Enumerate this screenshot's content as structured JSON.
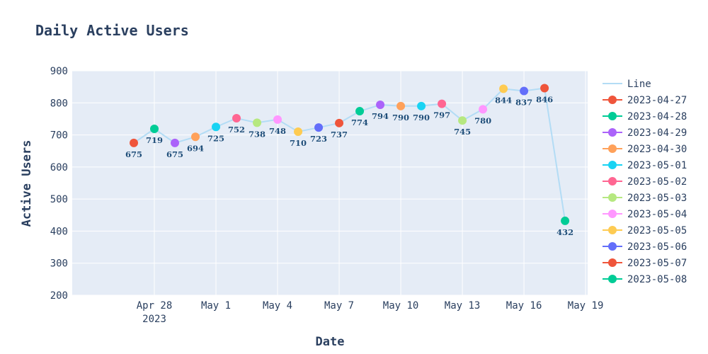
{
  "chart_data": {
    "type": "line",
    "title": "Daily Active Users",
    "xlabel": "Date",
    "ylabel": "Active Users",
    "ylim": [
      200,
      900
    ],
    "y_ticks": [
      200,
      300,
      400,
      500,
      600,
      700,
      800,
      900
    ],
    "xlim": [
      "2023-04-24",
      "2023-05-19"
    ],
    "x_ticks": [
      {
        "date": "2023-04-28",
        "label": "Apr 28",
        "sublabel": "2023"
      },
      {
        "date": "2023-05-01",
        "label": "May 1",
        "sublabel": ""
      },
      {
        "date": "2023-05-04",
        "label": "May 4",
        "sublabel": ""
      },
      {
        "date": "2023-05-07",
        "label": "May 7",
        "sublabel": ""
      },
      {
        "date": "2023-05-10",
        "label": "May 10",
        "sublabel": ""
      },
      {
        "date": "2023-05-13",
        "label": "May 13",
        "sublabel": ""
      },
      {
        "date": "2023-05-16",
        "label": "May 16",
        "sublabel": ""
      },
      {
        "date": "2023-05-19",
        "label": "May 19",
        "sublabel": ""
      }
    ],
    "line": {
      "name": "Line",
      "color": "#b3dcf5"
    },
    "points": [
      {
        "date": "2023-04-27",
        "value": 675,
        "label": "675",
        "color": "#EF553B"
      },
      {
        "date": "2023-04-28",
        "value": 719,
        "label": "719",
        "color": "#00CC96"
      },
      {
        "date": "2023-04-29",
        "value": 675,
        "label": "675",
        "color": "#AB63FA"
      },
      {
        "date": "2023-04-30",
        "value": 694,
        "label": "694",
        "color": "#FFA15A"
      },
      {
        "date": "2023-05-01",
        "value": 725,
        "label": "725",
        "color": "#19D3F3"
      },
      {
        "date": "2023-05-02",
        "value": 752,
        "label": "752",
        "color": "#FF6692"
      },
      {
        "date": "2023-05-03",
        "value": 738,
        "label": "738",
        "color": "#B6E880"
      },
      {
        "date": "2023-05-04",
        "value": 748,
        "label": "748",
        "color": "#FF97FF"
      },
      {
        "date": "2023-05-05",
        "value": 710,
        "label": "710",
        "color": "#FECB52"
      },
      {
        "date": "2023-05-06",
        "value": 723,
        "label": "723",
        "color": "#636EFA"
      },
      {
        "date": "2023-05-07",
        "value": 737,
        "label": "737",
        "color": "#EF553B"
      },
      {
        "date": "2023-05-08",
        "value": 774,
        "label": "774",
        "color": "#00CC96"
      },
      {
        "date": "2023-05-09",
        "value": 794,
        "label": "794",
        "color": "#AB63FA"
      },
      {
        "date": "2023-05-10",
        "value": 790,
        "label": "790",
        "color": "#FFA15A"
      },
      {
        "date": "2023-05-11",
        "value": 790,
        "label": "790",
        "color": "#19D3F3"
      },
      {
        "date": "2023-05-12",
        "value": 797,
        "label": "797",
        "color": "#FF6692"
      },
      {
        "date": "2023-05-13",
        "value": 745,
        "label": "745",
        "color": "#B6E880"
      },
      {
        "date": "2023-05-14",
        "value": 780,
        "label": "780",
        "color": "#FF97FF"
      },
      {
        "date": "2023-05-15",
        "value": 844,
        "label": "844",
        "color": "#FECB52"
      },
      {
        "date": "2023-05-16",
        "value": 837,
        "label": "837",
        "color": "#636EFA"
      },
      {
        "date": "2023-05-17",
        "value": 846,
        "label": "846",
        "color": "#EF553B"
      },
      {
        "date": "2023-05-18",
        "value": 432,
        "label": "432",
        "color": "#00CC96"
      }
    ],
    "legend": {
      "placement": "right",
      "entries": [
        {
          "name": "Line",
          "color": "#b3dcf5",
          "marker": false
        },
        {
          "name": "2023-04-27",
          "color": "#EF553B",
          "marker": true
        },
        {
          "name": "2023-04-28",
          "color": "#00CC96",
          "marker": true
        },
        {
          "name": "2023-04-29",
          "color": "#AB63FA",
          "marker": true
        },
        {
          "name": "2023-04-30",
          "color": "#FFA15A",
          "marker": true
        },
        {
          "name": "2023-05-01",
          "color": "#19D3F3",
          "marker": true
        },
        {
          "name": "2023-05-02",
          "color": "#FF6692",
          "marker": true
        },
        {
          "name": "2023-05-03",
          "color": "#B6E880",
          "marker": true
        },
        {
          "name": "2023-05-04",
          "color": "#FF97FF",
          "marker": true
        },
        {
          "name": "2023-05-05",
          "color": "#FECB52",
          "marker": true
        },
        {
          "name": "2023-05-06",
          "color": "#636EFA",
          "marker": true
        },
        {
          "name": "2023-05-07",
          "color": "#EF553B",
          "marker": true
        },
        {
          "name": "2023-05-08",
          "color": "#00CC96",
          "marker": true
        }
      ]
    },
    "grid": true,
    "plot_background": "#E5ECF6"
  }
}
